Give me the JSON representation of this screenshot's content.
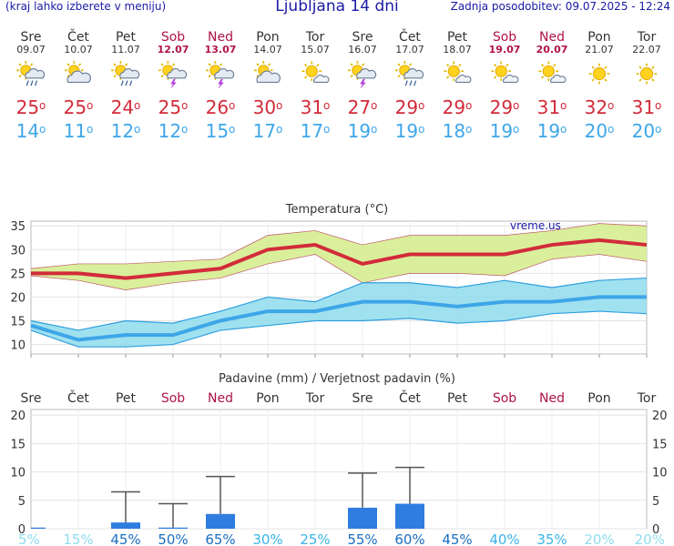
{
  "header": {
    "menu_hint": "(kraj lahko izberete v meniju)",
    "title": "Ljubljana 14 dni",
    "updated": "Zadnja posodobitev: 09.07.2025 - 12:24"
  },
  "watermark": "vreme.us",
  "days": [
    {
      "name": "Sre",
      "date": "09.07",
      "weekend": false,
      "icon": "sun-cloud-rain-icon",
      "tmax": "25",
      "tmin": "14"
    },
    {
      "name": "Čet",
      "date": "10.07",
      "weekend": false,
      "icon": "sun-cloud-icon",
      "tmax": "25",
      "tmin": "11"
    },
    {
      "name": "Pet",
      "date": "11.07",
      "weekend": false,
      "icon": "sun-cloud-rain-icon",
      "tmax": "24",
      "tmin": "12"
    },
    {
      "name": "Sob",
      "date": "12.07",
      "weekend": true,
      "icon": "thunderstorm-icon",
      "tmax": "25",
      "tmin": "12"
    },
    {
      "name": "Ned",
      "date": "13.07",
      "weekend": true,
      "icon": "thunderstorm-icon",
      "tmax": "26",
      "tmin": "15"
    },
    {
      "name": "Pon",
      "date": "14.07",
      "weekend": false,
      "icon": "sun-cloud-icon",
      "tmax": "30",
      "tmin": "17"
    },
    {
      "name": "Tor",
      "date": "15.07",
      "weekend": false,
      "icon": "sun-small-cloud-icon",
      "tmax": "31",
      "tmin": "17"
    },
    {
      "name": "Sre",
      "date": "16.07",
      "weekend": false,
      "icon": "thunderstorm-icon",
      "tmax": "27",
      "tmin": "19"
    },
    {
      "name": "Čet",
      "date": "17.07",
      "weekend": false,
      "icon": "sun-cloud-rain-icon",
      "tmax": "29",
      "tmin": "19"
    },
    {
      "name": "Pet",
      "date": "18.07",
      "weekend": false,
      "icon": "sun-small-cloud-icon",
      "tmax": "29",
      "tmin": "18"
    },
    {
      "name": "Sob",
      "date": "19.07",
      "weekend": true,
      "icon": "sun-small-cloud-icon",
      "tmax": "29",
      "tmin": "19"
    },
    {
      "name": "Ned",
      "date": "20.07",
      "weekend": true,
      "icon": "sun-small-cloud-icon",
      "tmax": "31",
      "tmin": "19"
    },
    {
      "name": "Pon",
      "date": "21.07",
      "weekend": false,
      "icon": "sun-icon",
      "tmax": "32",
      "tmin": "20"
    },
    {
      "name": "Tor",
      "date": "22.07",
      "weekend": false,
      "icon": "sun-icon",
      "tmax": "31",
      "tmin": "20"
    }
  ],
  "colors": {
    "max": "#d22b3a",
    "min": "#3ea6e8",
    "weekend": "#b0124a",
    "bar": "#2f7de0",
    "band_max": "#d4ec8a",
    "band_min": "#8fdcec"
  },
  "chart_data": [
    {
      "type": "line",
      "title": "Temperatura (°C)",
      "categories": [
        "Sre",
        "Čet",
        "Pet",
        "Sob",
        "Ned",
        "Pon",
        "Tor",
        "Sre",
        "Čet",
        "Pet",
        "Sob",
        "Ned",
        "Pon",
        "Tor"
      ],
      "ylim": [
        8,
        36
      ],
      "yticks": [
        "10",
        "15",
        "20",
        "25",
        "30",
        "35"
      ],
      "series": [
        {
          "name": "max",
          "values": [
            25,
            25,
            24,
            25,
            26,
            30,
            31,
            27,
            29,
            29,
            29,
            31,
            32,
            31
          ],
          "upper": [
            26,
            27,
            27,
            27.5,
            28,
            33,
            34,
            31,
            33,
            33,
            33,
            34,
            35.5,
            35
          ],
          "lower": [
            24.5,
            23.5,
            21.5,
            23,
            24,
            27,
            29,
            23,
            25,
            25,
            24.5,
            28,
            29,
            27.5
          ]
        },
        {
          "name": "min",
          "values": [
            14,
            11,
            12,
            12,
            15,
            17,
            17,
            19,
            19,
            18,
            19,
            19,
            20,
            20
          ],
          "upper": [
            15,
            13,
            15,
            14.5,
            17,
            20,
            19,
            23,
            23,
            22,
            23.5,
            22,
            23.5,
            24
          ],
          "lower": [
            13,
            9.5,
            9.5,
            10,
            13,
            14,
            15,
            15,
            15.5,
            14.5,
            15,
            16.5,
            17,
            16.5
          ]
        }
      ]
    },
    {
      "type": "bar",
      "title": "Padavine (mm) / Verjetnost padavin (%)",
      "categories": [
        "Sre",
        "Čet",
        "Pet",
        "Sob",
        "Ned",
        "Pon",
        "Tor",
        "Sre",
        "Čet",
        "Pet",
        "Sob",
        "Ned",
        "Pon",
        "Tor"
      ],
      "ylim": [
        0,
        21
      ],
      "yticks": [
        "0",
        "5",
        "10",
        "15",
        "20"
      ],
      "values": [
        0.2,
        0,
        1.1,
        0.2,
        2.6,
        0,
        0,
        3.7,
        4.4,
        0,
        0,
        0,
        0,
        0
      ],
      "error_max": [
        0,
        0,
        6.5,
        4.4,
        9.2,
        0,
        0,
        9.8,
        10.8,
        0,
        0,
        0,
        0,
        0
      ],
      "probability": [
        "5%",
        "15%",
        "45%",
        "50%",
        "65%",
        "30%",
        "25%",
        "55%",
        "60%",
        "45%",
        "40%",
        "35%",
        "20%",
        "20%"
      ],
      "probability_values": [
        5,
        15,
        45,
        50,
        65,
        30,
        25,
        55,
        60,
        45,
        40,
        35,
        20,
        20
      ]
    }
  ]
}
